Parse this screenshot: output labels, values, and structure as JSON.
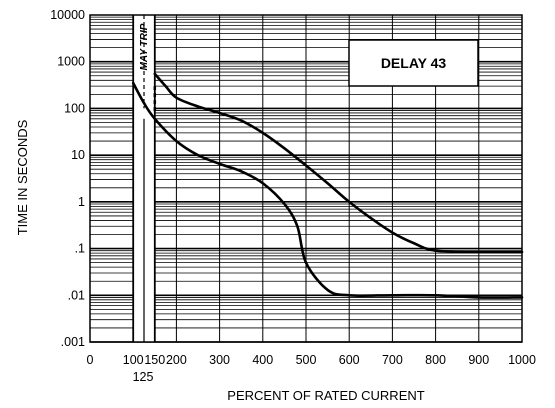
{
  "chart_data": {
    "type": "line",
    "x_scale": "linear",
    "y_scale": "log",
    "xlim": [
      0,
      1000
    ],
    "ylim": [
      0.001,
      10000
    ],
    "xlabel": "PERCENT OF RATED CURRENT",
    "ylabel": "TIME IN SECONDS",
    "x_ticks": [
      {
        "value": 0,
        "label": "0"
      },
      {
        "value": 100,
        "label": "100"
      },
      {
        "value": 150,
        "label": "150"
      },
      {
        "value": 200,
        "label": "200"
      },
      {
        "value": 300,
        "label": "300"
      },
      {
        "value": 400,
        "label": "400"
      },
      {
        "value": 500,
        "label": "500"
      },
      {
        "value": 600,
        "label": "600"
      },
      {
        "value": 700,
        "label": "700"
      },
      {
        "value": 800,
        "label": "800"
      },
      {
        "value": 900,
        "label": "900"
      },
      {
        "value": 1000,
        "label": "1000"
      }
    ],
    "x_extra_tick": {
      "value": 125,
      "label": "125"
    },
    "y_ticks": [
      {
        "value": 10000,
        "label": "10000"
      },
      {
        "value": 1000,
        "label": "1000"
      },
      {
        "value": 100,
        "label": "100"
      },
      {
        "value": 10,
        "label": "10"
      },
      {
        "value": 1,
        "label": "1"
      },
      {
        "value": 0.1,
        "label": ".1"
      },
      {
        "value": 0.01,
        "label": ".01"
      },
      {
        "value": 0.001,
        "label": ".001"
      }
    ],
    "grid": true,
    "legend": {
      "text": "DELAY 43",
      "placement": "top-right"
    },
    "annotations": [
      {
        "text": "MAY TRIP",
        "x_from": 100,
        "x_to": 150
      }
    ],
    "series": [
      {
        "x": [
          100,
          125,
          150,
          200,
          250,
          300,
          350,
          400,
          450,
          480,
          500,
          550,
          600,
          700,
          800,
          900,
          1000
        ],
        "y": [
          350,
          130,
          60,
          20,
          10,
          6.5,
          4.5,
          2.5,
          0.9,
          0.3,
          0.05,
          0.013,
          0.01,
          0.01,
          0.01,
          0.009,
          0.009
        ]
      },
      {
        "x": [
          150,
          175,
          200,
          250,
          300,
          350,
          400,
          450,
          500,
          550,
          600,
          650,
          700,
          750,
          800,
          900,
          1000
        ],
        "y": [
          550,
          300,
          170,
          110,
          80,
          55,
          30,
          14,
          6,
          2.5,
          1,
          0.45,
          0.22,
          0.13,
          0.09,
          0.085,
          0.085
        ]
      }
    ]
  }
}
